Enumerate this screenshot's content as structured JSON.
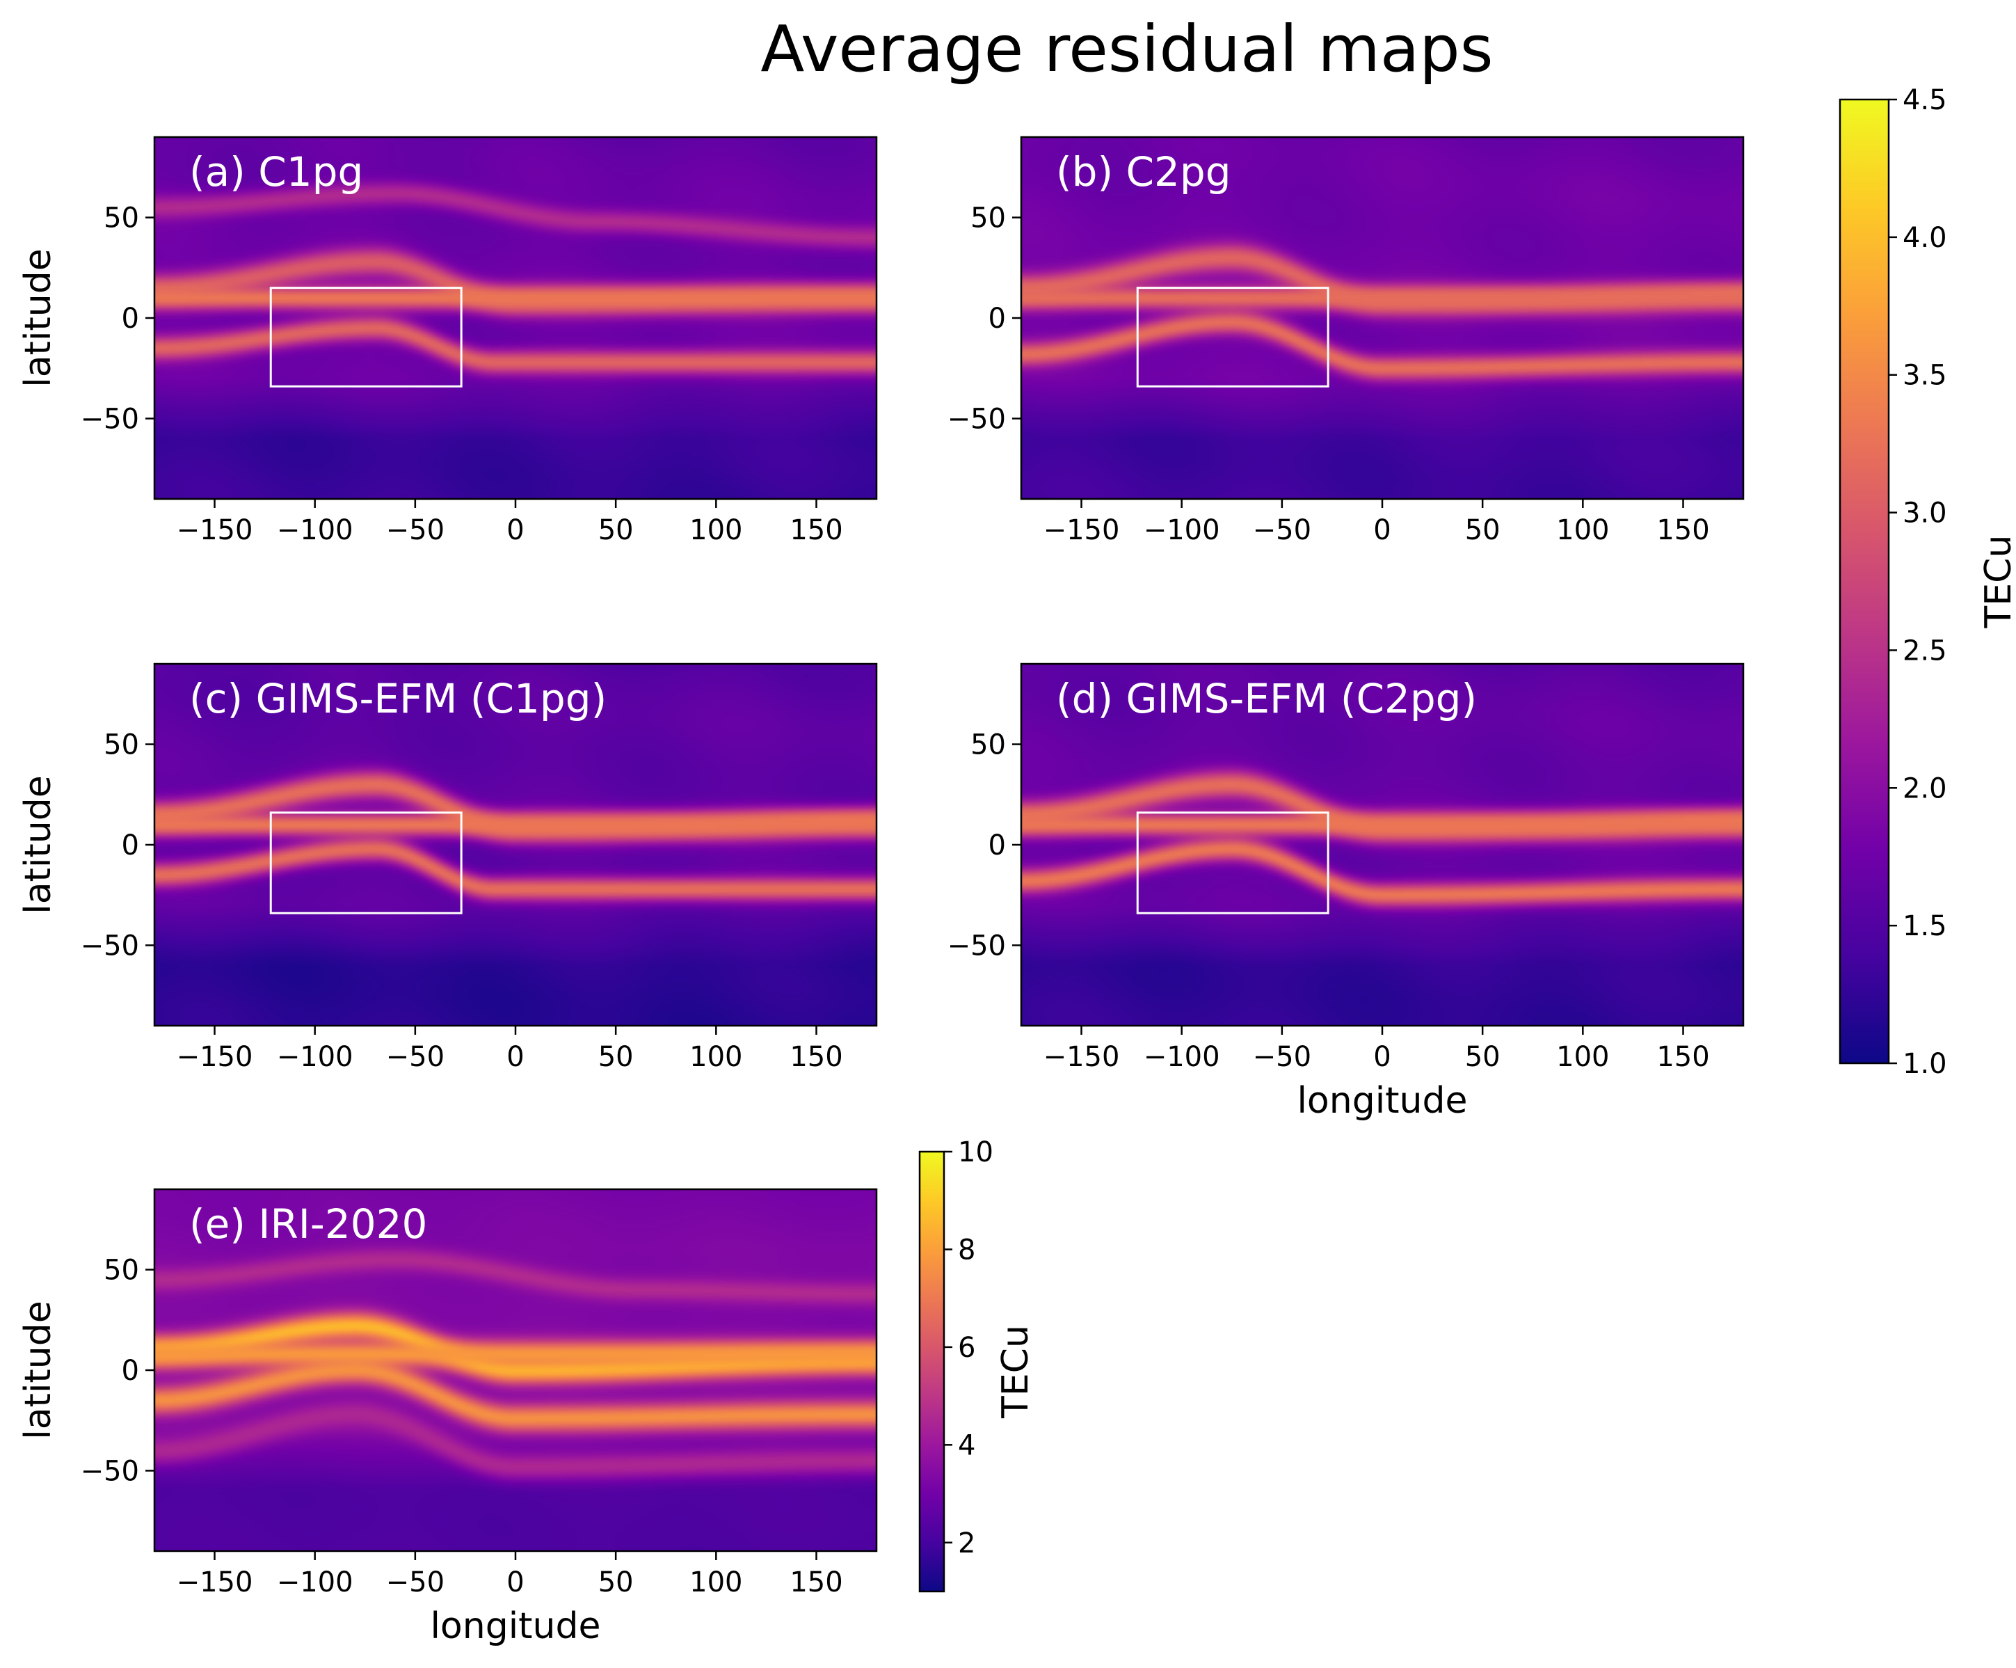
{
  "figure": {
    "title": "Average residual maps",
    "tick_color": "#000000",
    "box_color": "#ffffff",
    "panel_label_color": "#ffffff"
  },
  "colormap": {
    "name": "plasma",
    "stops": [
      "#0d0887",
      "#46039f",
      "#7201a8",
      "#9c179e",
      "#bd3786",
      "#d8576b",
      "#ed7953",
      "#fb9f3a",
      "#fdca26",
      "#f0f921"
    ]
  },
  "chart_data": [
    {
      "type": "heatmap",
      "panel_label": "(a) C1pg",
      "xlabel": "",
      "ylabel": "latitude",
      "xlim": [
        -180,
        180
      ],
      "ylim": [
        -90,
        90
      ],
      "xticks": [
        -150,
        -100,
        -50,
        0,
        50,
        100,
        150
      ],
      "yticks": [
        -50,
        0,
        50
      ],
      "xtick_labels": [
        "−150",
        "−100",
        "−50",
        "0",
        "50",
        "100",
        "150"
      ],
      "ytick_labels": [
        "−50",
        "0",
        "50"
      ],
      "box_region": {
        "lon": [
          -122,
          -27
        ],
        "lat": [
          -34,
          15
        ]
      },
      "colorbar": "shared_1",
      "bands": [
        {
          "lon": [
            -180,
            -70,
            0,
            180
          ],
          "lat": [
            15,
            28,
            8,
            10
          ],
          "width": 7,
          "value": 3.0
        },
        {
          "lon": [
            -180,
            -70,
            -10,
            180
          ],
          "lat": [
            -15,
            -5,
            -22,
            -22
          ],
          "width": 6,
          "value": 3.1
        },
        {
          "lon": [
            -180,
            -60,
            40,
            180
          ],
          "lat": [
            55,
            62,
            48,
            40
          ],
          "width": 6,
          "value": 2.4
        },
        {
          "lon": [
            80,
            180
          ],
          "lat": [
            10,
            10
          ],
          "width": 6,
          "value": 3.3
        }
      ],
      "background": 1.7,
      "south_low": 1.3
    },
    {
      "type": "heatmap",
      "panel_label": "(b) C2pg",
      "xlabel": "",
      "ylabel": "",
      "xlim": [
        -180,
        180
      ],
      "ylim": [
        -90,
        90
      ],
      "xticks": [
        -150,
        -100,
        -50,
        0,
        50,
        100,
        150
      ],
      "yticks": [
        -50,
        0,
        50
      ],
      "xtick_labels": [
        "−150",
        "−100",
        "−50",
        "0",
        "50",
        "100",
        "150"
      ],
      "ytick_labels": [
        "−50",
        "0",
        "50"
      ],
      "box_region": {
        "lon": [
          -122,
          -27
        ],
        "lat": [
          -34,
          15
        ]
      },
      "colorbar": "shared_1",
      "bands": [
        {
          "lon": [
            -180,
            -75,
            0,
            180
          ],
          "lat": [
            15,
            30,
            8,
            10
          ],
          "width": 7,
          "value": 3.1
        },
        {
          "lon": [
            -180,
            -75,
            0,
            180
          ],
          "lat": [
            -18,
            -2,
            -25,
            -22
          ],
          "width": 6,
          "value": 3.2
        },
        {
          "lon": [
            80,
            180
          ],
          "lat": [
            10,
            12
          ],
          "width": 6,
          "value": 3.2
        }
      ],
      "background": 1.75,
      "south_low": 1.35
    },
    {
      "type": "heatmap",
      "panel_label": "(c) GIMS-EFM (C1pg)",
      "xlabel": "",
      "ylabel": "latitude",
      "xlim": [
        -180,
        180
      ],
      "ylim": [
        -90,
        90
      ],
      "xticks": [
        -150,
        -100,
        -50,
        0,
        50,
        100,
        150
      ],
      "yticks": [
        -50,
        0,
        50
      ],
      "xtick_labels": [
        "−150",
        "−100",
        "−50",
        "0",
        "50",
        "100",
        "150"
      ],
      "ytick_labels": [
        "−50",
        "0",
        "50"
      ],
      "box_region": {
        "lon": [
          -122,
          -27
        ],
        "lat": [
          -34,
          16
        ]
      },
      "colorbar": "shared_1",
      "bands": [
        {
          "lon": [
            -180,
            -70,
            0,
            180
          ],
          "lat": [
            15,
            30,
            8,
            10
          ],
          "width": 7,
          "value": 3.2
        },
        {
          "lon": [
            -180,
            -70,
            -10,
            180
          ],
          "lat": [
            -15,
            -2,
            -22,
            -22
          ],
          "width": 6,
          "value": 3.2
        },
        {
          "lon": [
            80,
            180
          ],
          "lat": [
            10,
            12
          ],
          "width": 6,
          "value": 3.3
        }
      ],
      "background": 1.6,
      "south_low": 1.2
    },
    {
      "type": "heatmap",
      "panel_label": "(d) GIMS-EFM (C2pg)",
      "xlabel": "longitude",
      "ylabel": "",
      "xlim": [
        -180,
        180
      ],
      "ylim": [
        -90,
        90
      ],
      "xticks": [
        -150,
        -100,
        -50,
        0,
        50,
        100,
        150
      ],
      "yticks": [
        -50,
        0,
        50
      ],
      "xtick_labels": [
        "−150",
        "−100",
        "−50",
        "0",
        "50",
        "100",
        "150"
      ],
      "ytick_labels": [
        "−50",
        "0",
        "50"
      ],
      "box_region": {
        "lon": [
          -122,
          -27
        ],
        "lat": [
          -34,
          16
        ]
      },
      "colorbar": "shared_1",
      "bands": [
        {
          "lon": [
            -180,
            -75,
            0,
            180
          ],
          "lat": [
            15,
            30,
            8,
            10
          ],
          "width": 7,
          "value": 3.2
        },
        {
          "lon": [
            -180,
            -75,
            0,
            180
          ],
          "lat": [
            -18,
            -2,
            -25,
            -22
          ],
          "width": 6,
          "value": 3.3
        },
        {
          "lon": [
            80,
            180
          ],
          "lat": [
            10,
            12
          ],
          "width": 6,
          "value": 3.3
        }
      ],
      "background": 1.65,
      "south_low": 1.25
    },
    {
      "type": "heatmap",
      "panel_label": "(e) IRI-2020",
      "xlabel": "longitude",
      "ylabel": "latitude",
      "xlim": [
        -180,
        180
      ],
      "ylim": [
        -90,
        90
      ],
      "xticks": [
        -150,
        -100,
        -50,
        0,
        50,
        100,
        150
      ],
      "yticks": [
        -50,
        0,
        50
      ],
      "xtick_labels": [
        "−150",
        "−100",
        "−50",
        "0",
        "50",
        "100",
        "150"
      ],
      "ytick_labels": [
        "−50",
        "0",
        "50"
      ],
      "box_region": null,
      "colorbar": "iri",
      "bands": [
        {
          "lon": [
            -180,
            -80,
            0,
            180
          ],
          "lat": [
            10,
            22,
            0,
            5
          ],
          "width": 7,
          "value": 8.6
        },
        {
          "lon": [
            -180,
            -80,
            0,
            180
          ],
          "lat": [
            -15,
            0,
            -24,
            -22
          ],
          "width": 7,
          "value": 7.6
        },
        {
          "lon": [
            -180,
            -80,
            0,
            180
          ],
          "lat": [
            -40,
            -22,
            -48,
            -45
          ],
          "width": 7,
          "value": 4.5
        },
        {
          "lon": [
            80,
            180
          ],
          "lat": [
            8,
            8
          ],
          "width": 7,
          "value": 7.8
        },
        {
          "lon": [
            -180,
            -60,
            60,
            180
          ],
          "lat": [
            45,
            55,
            40,
            38
          ],
          "width": 6,
          "value": 4.6
        }
      ],
      "background": 3.3,
      "south_low": 2.2
    }
  ],
  "colorbars": {
    "shared_1": {
      "label": "TECu",
      "vmin": 1.0,
      "vmax": 4.5,
      "ticks": [
        "1.0",
        "1.5",
        "2.0",
        "2.5",
        "3.0",
        "3.5",
        "4.0",
        "4.5"
      ]
    },
    "iri": {
      "label": "TECu",
      "vmin": 1,
      "vmax": 10,
      "ticks": [
        "2",
        "4",
        "6",
        "8",
        "10"
      ]
    }
  }
}
